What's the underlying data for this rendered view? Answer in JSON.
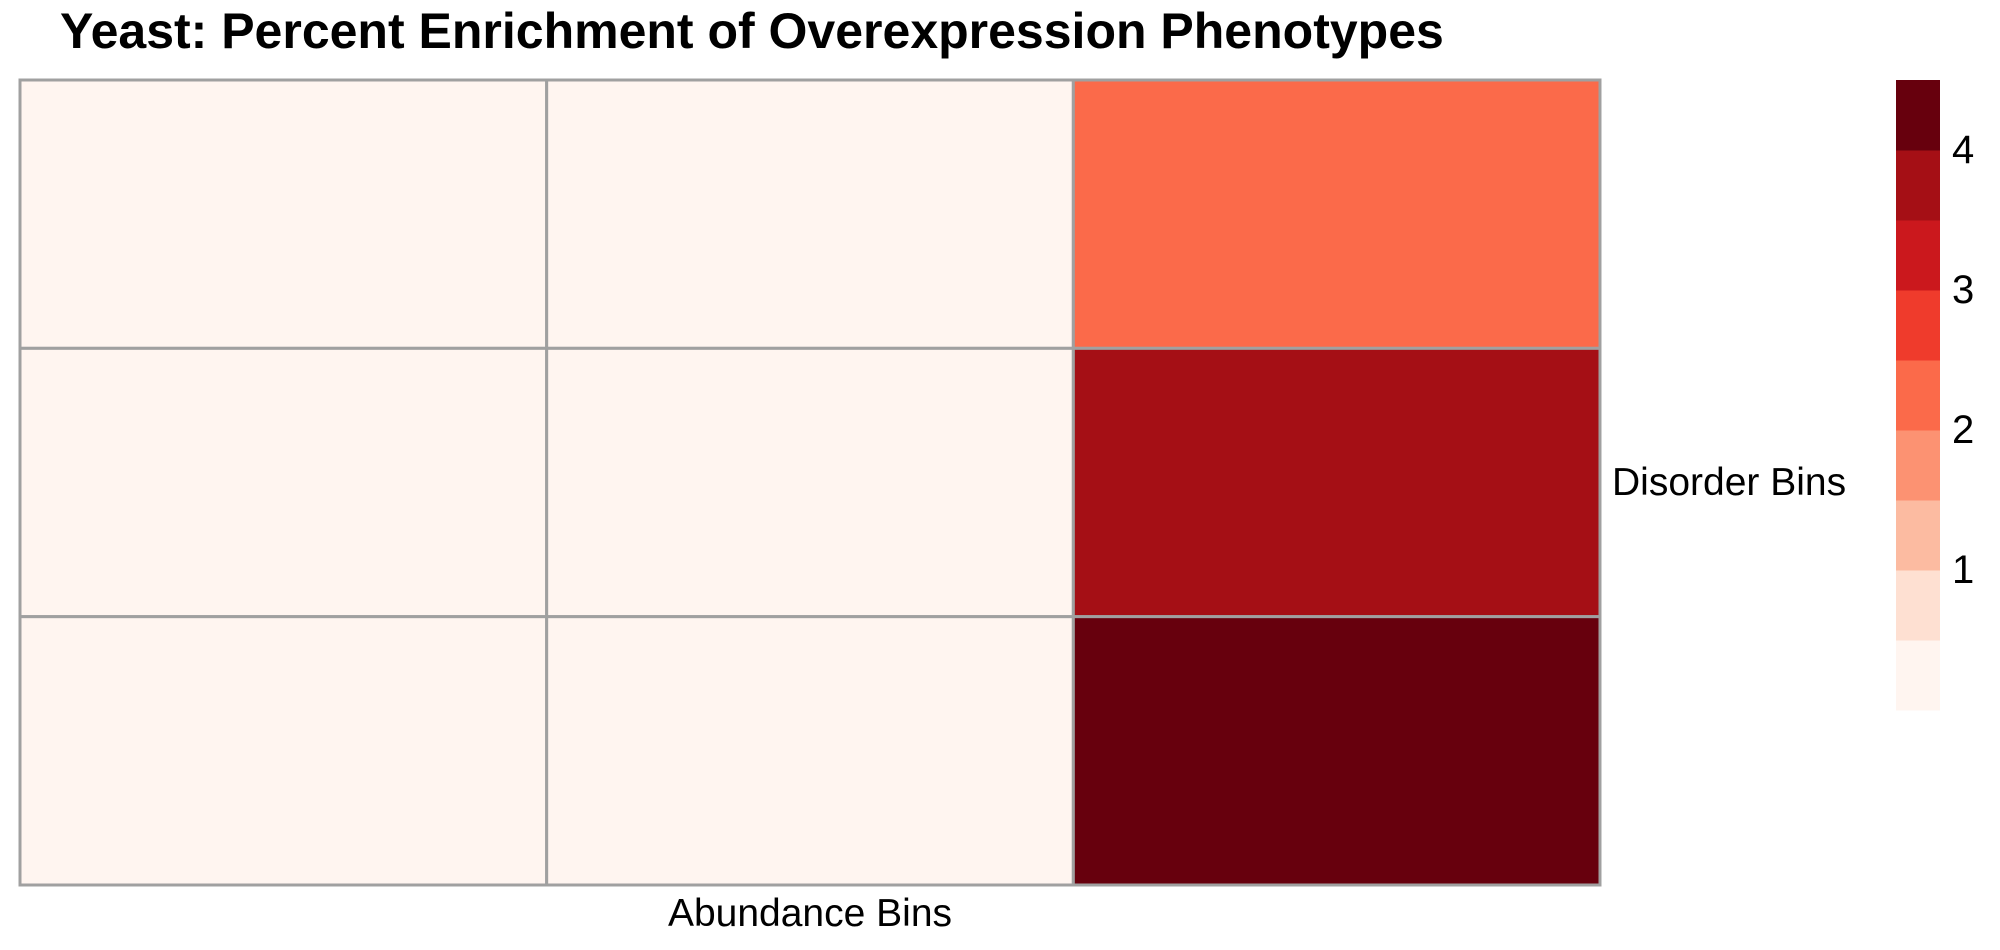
{
  "chart_data": {
    "type": "heatmap",
    "title": "Yeast: Percent Enrichment of Overexpression Phenotypes",
    "xlabel": "Abundance Bins",
    "ylabel": "Disorder Bins",
    "n_cols": 3,
    "n_rows": 3,
    "values": [
      [
        0.0,
        0.0,
        2.4
      ],
      [
        0.0,
        0.0,
        3.5
      ],
      [
        0.0,
        0.0,
        4.1
      ]
    ],
    "color_scale": {
      "range": [
        0,
        4.5
      ],
      "colors": [
        "#fff5f0",
        "#fee0d2",
        "#fcbba1",
        "#fc9272",
        "#fb6a4a",
        "#ef3b2c",
        "#cb181d",
        "#a50f15",
        "#67000d"
      ],
      "ticks": [
        1,
        2,
        3,
        4
      ]
    },
    "grid_color": "#a0a0a0",
    "legend": "right"
  }
}
